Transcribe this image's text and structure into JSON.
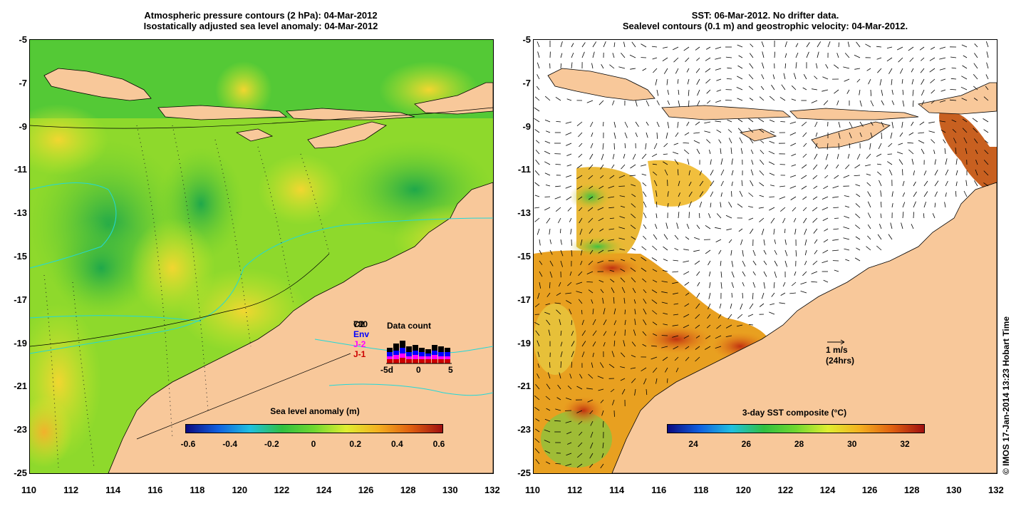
{
  "left_panel": {
    "title_line1": "Atmospheric pressure contours (2 hPa): 04-Mar-2012",
    "title_line2": "Isostatically adjusted sea level anomaly: 04-Mar-2012",
    "colorbar": {
      "title": "Sea level anomaly (m)",
      "ticks": [
        "-0.6",
        "-0.4",
        "-0.2",
        "0",
        "0.2",
        "0.4",
        "0.6"
      ]
    },
    "inset": {
      "title": "Data count",
      "legend": [
        "C2",
        "Env",
        "J-2",
        "J-1"
      ],
      "legend_colors": [
        "#000000",
        "#0000ff",
        "#ff00ff",
        "#cc0000"
      ],
      "legend_overprint": "780",
      "x_ticks": [
        "-5d",
        "0",
        "5"
      ]
    }
  },
  "right_panel": {
    "title_line1": "SST: 06-Mar-2012. No drifter data.",
    "title_line2": "Sealevel contours (0.1 m) and geostrophic velocity: 04-Mar-2012.",
    "colorbar": {
      "title": "3-day SST composite (°C)",
      "ticks": [
        "24",
        "26",
        "28",
        "30",
        "32"
      ]
    },
    "scale_arrow": {
      "label": "1 m/s",
      "sublabel": "(24hrs)"
    }
  },
  "axes": {
    "lon_ticks": [
      "110",
      "112",
      "114",
      "116",
      "118",
      "120",
      "122",
      "124",
      "126",
      "128",
      "130",
      "132"
    ],
    "lat_ticks": [
      "-5",
      "-7",
      "-9",
      "-11",
      "-13",
      "-15",
      "-17",
      "-19",
      "-21",
      "-23",
      "-25"
    ]
  },
  "copyright": "© IMOS 17-Jan-2014 13:23 Hobart Time",
  "colors": {
    "land": "#f8c89a",
    "ocean_green": "#7fd62c",
    "ocean_yellow": "#d8ee30",
    "ocean_dark_green": "#2fb81e",
    "no_data": "#ffffff",
    "sst_warm": "#e8821a"
  }
}
